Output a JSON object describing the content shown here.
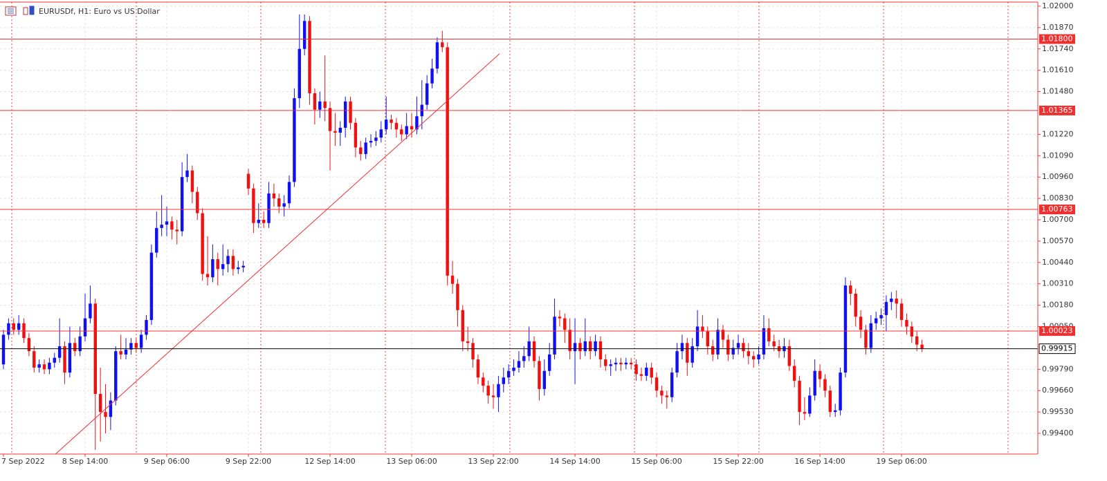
{
  "chart_data": {
    "type": "candlestick",
    "title": "EURUSDf, H1:  Euro vs US Dollar",
    "up_color": "#1010f0",
    "down_color": "#f01010",
    "level_color": "#f03030",
    "price_color": "#000000",
    "grid": true,
    "xlim": [
      -0.68,
      202.7
    ],
    "ylim": [
      0.99274,
      1.02025
    ],
    "xticks": [
      {
        "value": 0,
        "label": "7 Sep 2022"
      },
      {
        "value": 16,
        "label": "8 Sep 14:00"
      },
      {
        "value": 32,
        "label": "9 Sep 06:00"
      },
      {
        "value": 48,
        "label": "9 Sep 22:00"
      },
      {
        "value": 64,
        "label": "12 Sep 14:00"
      },
      {
        "value": 80,
        "label": "13 Sep 06:00"
      },
      {
        "value": 96,
        "label": "13 Sep 22:00"
      },
      {
        "value": 112,
        "label": "14 Sep 14:00"
      },
      {
        "value": 128,
        "label": "15 Sep 06:00"
      },
      {
        "value": 144,
        "label": "15 Sep 22:00"
      },
      {
        "value": 160,
        "label": "16 Sep 14:00"
      },
      {
        "value": 176,
        "label": "19 Sep 06:00"
      }
    ],
    "yticks": [
      {
        "value": 1.02,
        "label": "1.02000"
      },
      {
        "value": 1.0187,
        "label": "1.01870"
      },
      {
        "value": 1.0174,
        "label": "1.01740"
      },
      {
        "value": 1.0161,
        "label": "1.01610"
      },
      {
        "value": 1.0148,
        "label": "1.01480"
      },
      {
        "value": 1.0122,
        "label": "1.01220"
      },
      {
        "value": 1.0109,
        "label": "1.01090"
      },
      {
        "value": 1.0096,
        "label": "1.00960"
      },
      {
        "value": 1.0083,
        "label": "1.00830"
      },
      {
        "value": 1.007,
        "label": "1.00700"
      },
      {
        "value": 1.0057,
        "label": "1.00570"
      },
      {
        "value": 1.0044,
        "label": "1.00440"
      },
      {
        "value": 1.0031,
        "label": "1.00310"
      },
      {
        "value": 1.0018,
        "label": "1.00180"
      },
      {
        "value": 1.0005,
        "label": "1.00050"
      },
      {
        "value": 0.9979,
        "label": "0.99790"
      },
      {
        "value": 0.9966,
        "label": "0.99660"
      },
      {
        "value": 0.9953,
        "label": "0.99530"
      },
      {
        "value": 0.994,
        "label": "0.99400"
      }
    ],
    "levels": [
      {
        "value": 1.018,
        "label": "1.01800"
      },
      {
        "value": 1.01365,
        "label": "1.01365"
      },
      {
        "value": 1.00763,
        "label": "1.00763"
      },
      {
        "value": 1.00023,
        "label": "1.00023"
      }
    ],
    "price": {
      "value": 0.99915,
      "label": "0.99915"
    },
    "trendline": {
      "x": [
        10.2,
        97.2
      ],
      "y": [
        0.99274,
        1.0171
      ]
    },
    "candles": [
      [
        0.9982,
        1.0003,
        0.9979,
        1.0
      ],
      [
        1.0,
        1.001,
        0.9997,
        1.0007
      ],
      [
        1.0007,
        1.001,
        1.0,
        1.0003
      ],
      [
        1.0003,
        1.0012,
        1.0,
        1.0007
      ],
      [
        1.0007,
        1.001,
        0.9995,
        0.9998
      ],
      [
        0.9998,
        1.0001,
        0.9987,
        0.999
      ],
      [
        0.999,
        0.9993,
        0.9977,
        0.998
      ],
      [
        0.998,
        0.9985,
        0.9977,
        0.9982
      ],
      [
        0.9982,
        0.9985,
        0.9976,
        0.9979
      ],
      [
        0.9979,
        0.9986,
        0.9976,
        0.9983
      ],
      [
        0.9983,
        0.9989,
        0.998,
        0.9986
      ],
      [
        0.9986,
        1.001,
        0.9983,
        0.9993
      ],
      [
        0.9993,
        0.9996,
        0.997,
        0.9977
      ],
      [
        0.9977,
        1.0005,
        0.9974,
        0.9995
      ],
      [
        0.9995,
        0.9998,
        0.9987,
        0.999
      ],
      [
        0.999,
        1.0005,
        0.9987,
        0.9999
      ],
      [
        0.9999,
        1.0025,
        0.9996,
        1.001
      ],
      [
        1.001,
        1.003,
        1.0007,
        1.0019
      ],
      [
        1.0019,
        1.0022,
        0.993,
        0.9964
      ],
      [
        0.9964,
        0.998,
        0.9935,
        0.9953
      ],
      [
        0.9953,
        0.997,
        0.994,
        0.995
      ],
      [
        0.995,
        0.9965,
        0.9942,
        0.996
      ],
      [
        0.996,
        0.9993,
        0.9957,
        0.999
      ],
      [
        0.999,
        1.0,
        0.9985,
        0.9988
      ],
      [
        0.9988,
        0.9998,
        0.9985,
        0.9991
      ],
      [
        0.9991,
        0.9998,
        0.9988,
        0.9995
      ],
      [
        0.9995,
        0.9998,
        0.9989,
        0.9992
      ],
      [
        0.9992,
        1.0003,
        0.9989,
        1.0
      ],
      [
        1.0,
        1.0012,
        0.9997,
        1.0009
      ],
      [
        1.0009,
        1.0055,
        1.0006,
        1.005
      ],
      [
        1.005,
        1.0075,
        1.0047,
        1.0065
      ],
      [
        1.0065,
        1.0085,
        1.006,
        1.0067
      ],
      [
        1.0067,
        1.0078,
        1.006,
        1.0069
      ],
      [
        1.0069,
        1.0072,
        1.0058,
        1.0064
      ],
      [
        1.0064,
        1.007,
        1.0055,
        1.0063
      ],
      [
        1.0063,
        1.0105,
        1.006,
        1.0096
      ],
      [
        1.0096,
        1.011,
        1.0093,
        1.01
      ],
      [
        1.01,
        1.0103,
        1.008,
        1.0087
      ],
      [
        1.0087,
        1.009,
        1.007,
        1.0074
      ],
      [
        1.0074,
        1.0077,
        1.0033,
        1.0037
      ],
      [
        1.0037,
        1.006,
        1.003,
        1.0035
      ],
      [
        1.0035,
        1.0055,
        1.0032,
        1.0046
      ],
      [
        1.0046,
        1.005,
        1.003,
        1.004
      ],
      [
        1.004,
        1.0055,
        1.0036,
        1.0043
      ],
      [
        1.0043,
        1.0052,
        1.0038,
        1.0048
      ],
      [
        1.0048,
        1.0052,
        1.0036,
        1.004
      ],
      [
        1.004,
        1.0045,
        1.0037,
        1.0041
      ],
      [
        1.0041,
        1.0045,
        1.0038,
        1.0042
      ],
      [
        1.0098,
        1.0101,
        1.0085,
        1.0089
      ],
      [
        1.0089,
        1.0092,
        1.0062,
        1.0068
      ],
      [
        1.0068,
        1.008,
        1.0065,
        1.007
      ],
      [
        1.007,
        1.0075,
        1.0065,
        1.0068
      ],
      [
        1.0068,
        1.0093,
        1.0065,
        1.0086
      ],
      [
        1.0086,
        1.0092,
        1.0078,
        1.0083
      ],
      [
        1.0083,
        1.0086,
        1.0074,
        1.0078
      ],
      [
        1.0078,
        1.0085,
        1.0072,
        1.008
      ],
      [
        1.008,
        1.0097,
        1.0077,
        1.0093
      ],
      [
        1.0093,
        1.015,
        1.009,
        1.0144
      ],
      [
        1.0144,
        1.0195,
        1.0138,
        1.0174
      ],
      [
        1.0174,
        1.0195,
        1.017,
        1.0191
      ],
      [
        1.0191,
        1.0194,
        1.014,
        1.0147
      ],
      [
        1.0147,
        1.015,
        1.0128,
        1.0137
      ],
      [
        1.0137,
        1.0148,
        1.0132,
        1.0142
      ],
      [
        1.0142,
        1.017,
        1.013,
        1.0138
      ],
      [
        1.0138,
        1.0142,
        1.01,
        1.0124
      ],
      [
        1.0124,
        1.0135,
        1.0115,
        1.0123
      ],
      [
        1.0123,
        1.013,
        1.0115,
        1.0126
      ],
      [
        1.0126,
        1.0145,
        1.012,
        1.0142
      ],
      [
        1.0142,
        1.0145,
        1.0125,
        1.0129
      ],
      [
        1.0129,
        1.0132,
        1.0108,
        1.0114
      ],
      [
        1.0114,
        1.0118,
        1.0106,
        1.011
      ],
      [
        1.011,
        1.012,
        1.0107,
        1.0117
      ],
      [
        1.0117,
        1.0122,
        1.0114,
        1.0118
      ],
      [
        1.0118,
        1.0124,
        1.0115,
        1.012
      ],
      [
        1.012,
        1.013,
        1.0117,
        1.0125
      ],
      [
        1.0125,
        1.0145,
        1.0122,
        1.0131
      ],
      [
        1.0131,
        1.0134,
        1.0125,
        1.0129
      ],
      [
        1.0129,
        1.0132,
        1.012,
        1.0125
      ],
      [
        1.0125,
        1.0128,
        1.0118,
        1.0122
      ],
      [
        1.0122,
        1.0135,
        1.0119,
        1.0127
      ],
      [
        1.0127,
        1.0135,
        1.012,
        1.0125
      ],
      [
        1.0125,
        1.0145,
        1.0122,
        1.0133
      ],
      [
        1.0133,
        1.0155,
        1.0125,
        1.014
      ],
      [
        1.014,
        1.0158,
        1.0137,
        1.0153
      ],
      [
        1.0153,
        1.0168,
        1.015,
        1.0162
      ],
      [
        1.0162,
        1.0181,
        1.0159,
        1.0178
      ],
      [
        1.0178,
        1.0185,
        1.0172,
        1.0175
      ],
      [
        1.0175,
        1.0178,
        1.003,
        1.0036
      ],
      [
        1.0036,
        1.0045,
        1.0025,
        1.0031
      ],
      [
        1.0031,
        1.0034,
        1.0005,
        1.0015
      ],
      [
        1.0015,
        1.0018,
        0.999,
        0.9996
      ],
      [
        0.9996,
        1.0005,
        0.999,
        0.9995
      ],
      [
        0.9995,
        0.9998,
        0.998,
        0.9985
      ],
      [
        0.9985,
        0.9988,
        0.997,
        0.9974
      ],
      [
        0.9974,
        0.9977,
        0.9965,
        0.9969
      ],
      [
        0.9969,
        0.9972,
        0.9958,
        0.9963
      ],
      [
        0.9963,
        0.997,
        0.9955,
        0.9962
      ],
      [
        0.9962,
        0.9975,
        0.9953,
        0.997
      ],
      [
        0.997,
        0.998,
        0.9965,
        0.9974
      ],
      [
        0.9974,
        0.9982,
        0.997,
        0.9978
      ],
      [
        0.9978,
        0.9985,
        0.9975,
        0.998
      ],
      [
        0.998,
        0.999,
        0.9977,
        0.9984
      ],
      [
        0.9984,
        0.9993,
        0.998,
        0.9987
      ],
      [
        0.9987,
        1.0005,
        0.9984,
        0.9996
      ],
      [
        0.9996,
        0.9999,
        0.998,
        0.9984
      ],
      [
        0.9984,
        0.9987,
        0.996,
        0.9967
      ],
      [
        0.9967,
        0.9985,
        0.9963,
        0.9978
      ],
      [
        0.9978,
        0.9995,
        0.9975,
        0.9988
      ],
      [
        0.9988,
        1.0022,
        0.9985,
        1.0011
      ],
      [
        1.0011,
        1.0015,
        1.0005,
        1.001
      ],
      [
        1.001,
        1.0013,
        0.9995,
        1.0003
      ],
      [
        1.0003,
        1.001,
        0.9985,
        0.999
      ],
      [
        0.999,
        1.001,
        0.997,
        0.9995
      ],
      [
        0.9995,
        0.9998,
        0.9985,
        0.999
      ],
      [
        0.999,
        1.001,
        0.9987,
        0.9996
      ],
      [
        0.9996,
        0.9999,
        0.9985,
        0.999
      ],
      [
        0.999,
        1.0,
        0.9987,
        0.9996
      ],
      [
        0.9996,
        0.9999,
        0.998,
        0.9985
      ],
      [
        0.9985,
        0.9988,
        0.9978,
        0.9981
      ],
      [
        0.9981,
        0.9985,
        0.9975,
        0.9982
      ],
      [
        0.9982,
        0.9986,
        0.9978,
        0.9983
      ],
      [
        0.9983,
        0.9986,
        0.9978,
        0.9982
      ],
      [
        0.9982,
        0.9986,
        0.9979,
        0.9983
      ],
      [
        0.9983,
        0.9986,
        0.9979,
        0.9982
      ],
      [
        0.9982,
        0.9985,
        0.9972,
        0.9976
      ],
      [
        0.9976,
        0.998,
        0.9972,
        0.9975
      ],
      [
        0.9975,
        0.9983,
        0.9972,
        0.998
      ],
      [
        0.998,
        0.9983,
        0.997,
        0.9974
      ],
      [
        0.9974,
        0.9977,
        0.9962,
        0.9966
      ],
      [
        0.9966,
        0.9969,
        0.9958,
        0.9963
      ],
      [
        0.9963,
        0.9966,
        0.9955,
        0.9962
      ],
      [
        0.9962,
        0.998,
        0.9959,
        0.9977
      ],
      [
        0.9977,
        0.9995,
        0.9974,
        0.999
      ],
      [
        0.999,
        1.0,
        0.9985,
        0.9995
      ],
      [
        0.9995,
        0.9998,
        0.9975,
        0.9983
      ],
      [
        0.9983,
        0.9998,
        0.998,
        0.9993
      ],
      [
        0.9993,
        1.0015,
        0.999,
        1.0005
      ],
      [
        1.0005,
        1.0012,
        0.9998,
        1.0002
      ],
      [
        1.0002,
        1.0005,
        0.9988,
        0.9993
      ],
      [
        0.9993,
        0.9997,
        0.9984,
        0.9988
      ],
      [
        0.9988,
        1.001,
        0.9985,
        1.0003
      ],
      [
        1.0003,
        1.0006,
        0.9992,
        0.9997
      ],
      [
        0.9997,
        1.0,
        0.9984,
        0.9988
      ],
      [
        0.9988,
        0.9997,
        0.9985,
        0.9992
      ],
      [
        0.9992,
        1.0,
        0.9988,
        0.9995
      ],
      [
        0.9995,
        0.9998,
        0.9986,
        0.999
      ],
      [
        0.999,
        0.9995,
        0.9982,
        0.9987
      ],
      [
        0.9987,
        0.999,
        0.998,
        0.9985
      ],
      [
        0.9985,
        0.9993,
        0.9982,
        0.9988
      ],
      [
        0.9988,
        1.0012,
        0.9985,
        1.0004
      ],
      [
        1.0004,
        1.001,
        0.9993,
        0.9996
      ],
      [
        0.9996,
        1.0,
        0.999,
        0.9993
      ],
      [
        0.9993,
        0.9997,
        0.9986,
        0.999
      ],
      [
        0.999,
        0.9998,
        0.9986,
        0.9993
      ],
      [
        0.9993,
        0.9997,
        0.9978,
        0.9981
      ],
      [
        0.9981,
        0.9985,
        0.9968,
        0.9972
      ],
      [
        0.9972,
        0.9975,
        0.9945,
        0.9953
      ],
      [
        0.9953,
        0.9962,
        0.9948,
        0.9952
      ],
      [
        0.9952,
        0.9968,
        0.995,
        0.9963
      ],
      [
        0.9963,
        0.9985,
        0.996,
        0.9978
      ],
      [
        0.9978,
        0.9982,
        0.9968,
        0.9973
      ],
      [
        0.9973,
        0.9976,
        0.9962,
        0.9966
      ],
      [
        0.9966,
        0.9969,
        0.995,
        0.9953
      ],
      [
        0.9953,
        0.9958,
        0.995,
        0.9954
      ],
      [
        0.9954,
        0.998,
        0.9951,
        0.9977
      ],
      [
        0.9977,
        1.0035,
        0.9974,
        1.003
      ],
      [
        1.003,
        1.0033,
        1.0018,
        1.0025
      ],
      [
        1.0025,
        1.0028,
        1.0005,
        1.0011
      ],
      [
        1.0011,
        1.0015,
        0.9998,
        1.0003
      ],
      [
        1.0003,
        1.0006,
        0.9988,
        0.9992
      ],
      [
        0.9992,
        1.0012,
        0.9989,
        1.0007
      ],
      [
        1.0007,
        1.0014,
        1.0003,
        1.001
      ],
      [
        1.001,
        1.0016,
        1.0006,
        1.0012
      ],
      [
        1.0012,
        1.0024,
        1.0002,
        1.002
      ],
      [
        1.002,
        1.0026,
        1.0015,
        1.0022
      ],
      [
        1.0022,
        1.0027,
        1.001,
        1.0019
      ],
      [
        1.0019,
        1.0022,
        1.0005,
        1.0009
      ],
      [
        1.0009,
        1.0013,
        1.0,
        1.0005
      ],
      [
        1.0005,
        1.0008,
        0.9995,
        0.9999
      ],
      [
        0.9999,
        1.0002,
        0.999,
        0.9994
      ],
      [
        0.9994,
        0.9997,
        0.99895,
        0.99915
      ]
    ]
  }
}
